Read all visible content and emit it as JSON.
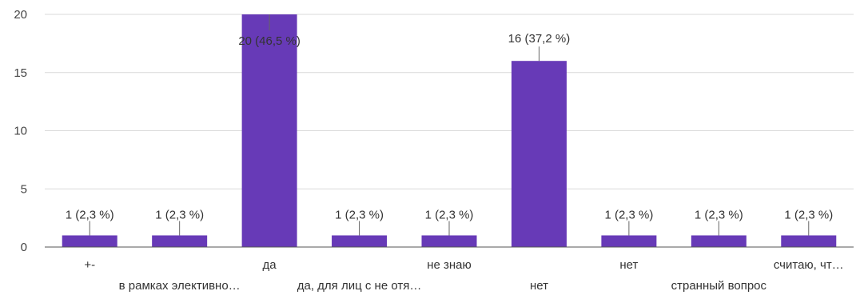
{
  "chart_data": {
    "type": "bar",
    "title": "",
    "xlabel": "",
    "ylabel": "",
    "ylim": [
      0,
      20
    ],
    "y_ticks": [
      "0",
      "5",
      "10",
      "15",
      "20"
    ],
    "grid": true,
    "bar_color": "#673ab7",
    "categories": [
      "+-",
      "в рамках элективно…",
      "да",
      "да, для лиц с не отя…",
      "не знаю",
      "нет",
      "нет",
      "странный вопрос",
      "считаю, чт…"
    ],
    "values": [
      1,
      1,
      20,
      1,
      1,
      16,
      1,
      1,
      1
    ],
    "data_labels": [
      "1 (2,3 %)",
      "1 (2,3 %)",
      "20 (46,5 %)",
      "1 (2,3 %)",
      "1 (2,3 %)",
      "16 (37,2 %)",
      "1 (2,3 %)",
      "1 (2,3 %)",
      "1 (2,3 %)"
    ]
  }
}
